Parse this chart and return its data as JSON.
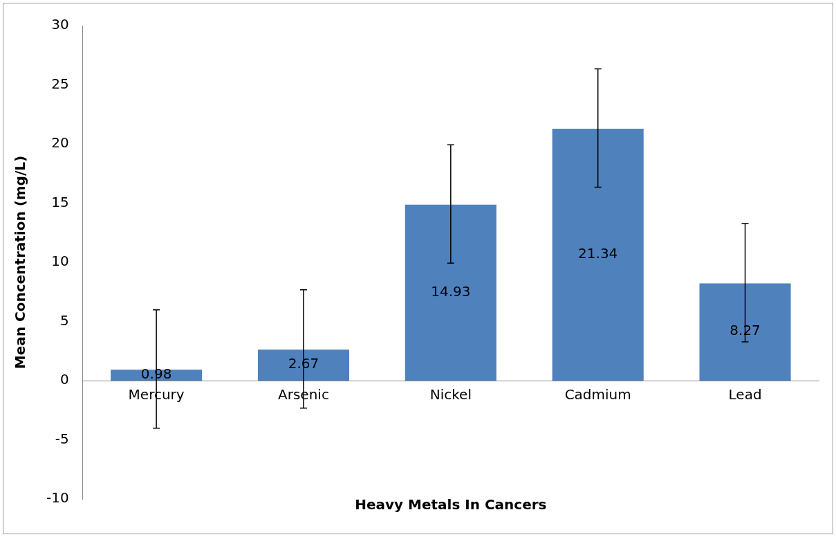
{
  "chart_data": {
    "type": "bar",
    "xlabel": "Heavy Metals In Cancers",
    "ylabel": "Mean Concentration (mg/L)",
    "categories": [
      "Mercury",
      "Arsenic",
      "Nickel",
      "Cadmium",
      "Lead"
    ],
    "values": [
      0.98,
      2.67,
      14.93,
      21.34,
      8.27
    ],
    "errors": [
      5,
      5,
      5,
      5,
      5
    ],
    "color": "#4f81bd",
    "ylim": [
      -10,
      30
    ],
    "yticks": [
      -10,
      -5,
      0,
      5,
      10,
      15,
      20,
      25,
      30
    ],
    "grid": false,
    "legend": false,
    "data_labels": true
  }
}
